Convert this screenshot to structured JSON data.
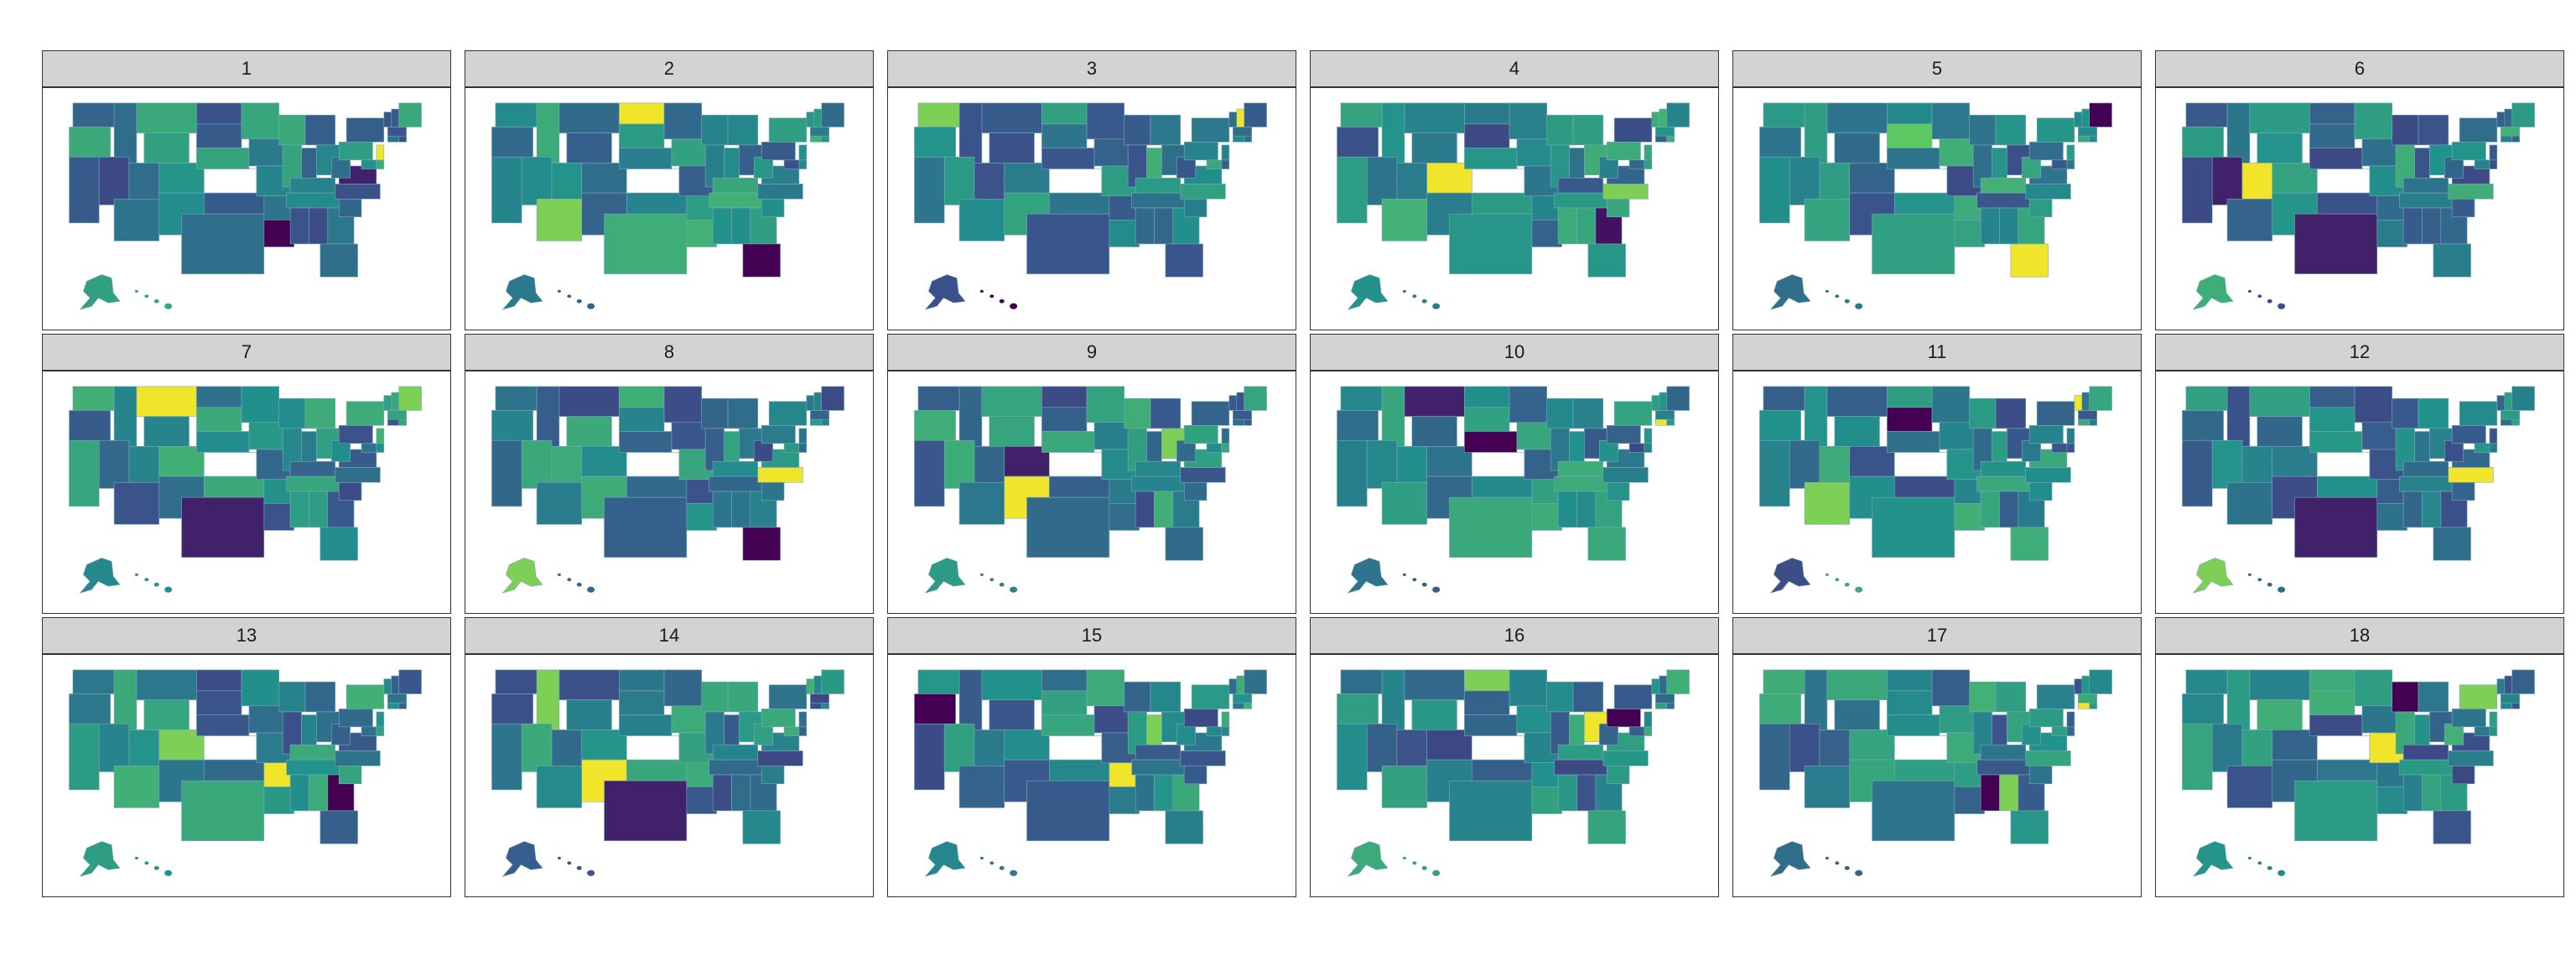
{
  "chart_data": {
    "type": "choropleth-small-multiples",
    "colormap": "viridis",
    "legend": "none",
    "panels": [
      {
        "label": "1",
        "highlights": [
          {
            "state": "Louisiana",
            "level": 0.0
          },
          {
            "state": "New Jersey",
            "level": 0.98
          },
          {
            "state": "Virginia",
            "level": 0.1
          }
        ]
      },
      {
        "label": "2",
        "highlights": [
          {
            "state": "North Dakota",
            "level": 0.98
          },
          {
            "state": "Arizona",
            "level": 0.8
          },
          {
            "state": "Florida",
            "level": 0.0
          }
        ]
      },
      {
        "label": "3",
        "highlights": [
          {
            "state": "Washington",
            "level": 0.8
          },
          {
            "state": "Hawaii",
            "level": 0.0
          },
          {
            "state": "New Hampshire",
            "level": 0.98
          }
        ]
      },
      {
        "label": "4",
        "highlights": [
          {
            "state": "Colorado",
            "level": 0.98
          },
          {
            "state": "North Carolina",
            "level": 0.8
          },
          {
            "state": "Georgia",
            "level": 0.05
          }
        ]
      },
      {
        "label": "5",
        "highlights": [
          {
            "state": "Florida",
            "level": 0.98
          },
          {
            "state": "Maine",
            "level": 0.0
          },
          {
            "state": "South Dakota",
            "level": 0.75
          }
        ]
      },
      {
        "label": "6",
        "highlights": [
          {
            "state": "Utah",
            "level": 0.98
          },
          {
            "state": "Texas",
            "level": 0.1
          },
          {
            "state": "Nevada",
            "level": 0.1
          }
        ]
      },
      {
        "label": "7",
        "highlights": [
          {
            "state": "Montana",
            "level": 0.98
          },
          {
            "state": "Maine",
            "level": 0.8
          },
          {
            "state": "Texas",
            "level": 0.1
          }
        ]
      },
      {
        "label": "8",
        "highlights": [
          {
            "state": "North Carolina",
            "level": 0.98
          },
          {
            "state": "Alaska",
            "level": 0.8
          },
          {
            "state": "Florida",
            "level": 0.0
          }
        ]
      },
      {
        "label": "9",
        "highlights": [
          {
            "state": "New Mexico",
            "level": 0.98
          },
          {
            "state": "Ohio",
            "level": 0.8
          },
          {
            "state": "Colorado",
            "level": 0.1
          }
        ]
      },
      {
        "label": "10",
        "highlights": [
          {
            "state": "Nebraska",
            "level": 0.0
          },
          {
            "state": "Connecticut",
            "level": 0.98
          },
          {
            "state": "Montana",
            "level": 0.1
          }
        ]
      },
      {
        "label": "11",
        "highlights": [
          {
            "state": "Arizona",
            "level": 0.8
          },
          {
            "state": "South Dakota",
            "level": 0.0
          },
          {
            "state": "Vermont",
            "level": 0.98
          }
        ]
      },
      {
        "label": "12",
        "highlights": [
          {
            "state": "North Carolina",
            "level": 0.98
          },
          {
            "state": "Alaska",
            "level": 0.8
          },
          {
            "state": "Texas",
            "level": 0.1
          }
        ]
      },
      {
        "label": "13",
        "highlights": [
          {
            "state": "Arkansas",
            "level": 0.98
          },
          {
            "state": "Colorado",
            "level": 0.8
          },
          {
            "state": "Georgia",
            "level": 0.0
          }
        ]
      },
      {
        "label": "14",
        "highlights": [
          {
            "state": "New Mexico",
            "level": 0.98
          },
          {
            "state": "Idaho",
            "level": 0.8
          },
          {
            "state": "Texas",
            "level": 0.1
          }
        ]
      },
      {
        "label": "15",
        "highlights": [
          {
            "state": "Oregon",
            "level": 0.0
          },
          {
            "state": "Arkansas",
            "level": 0.98
          },
          {
            "state": "Indiana",
            "level": 0.8
          }
        ]
      },
      {
        "label": "16",
        "highlights": [
          {
            "state": "Ohio",
            "level": 0.98
          },
          {
            "state": "Pennsylvania",
            "level": 0.0
          },
          {
            "state": "North Dakota",
            "level": 0.8
          }
        ]
      },
      {
        "label": "17",
        "highlights": [
          {
            "state": "Mississippi",
            "level": 0.0
          },
          {
            "state": "Alabama",
            "level": 0.8
          },
          {
            "state": "Connecticut",
            "level": 0.98
          }
        ]
      },
      {
        "label": "18",
        "highlights": [
          {
            "state": "Missouri",
            "level": 0.98
          },
          {
            "state": "Wisconsin",
            "level": 0.0
          },
          {
            "state": "New York",
            "level": 0.8
          }
        ]
      }
    ]
  }
}
